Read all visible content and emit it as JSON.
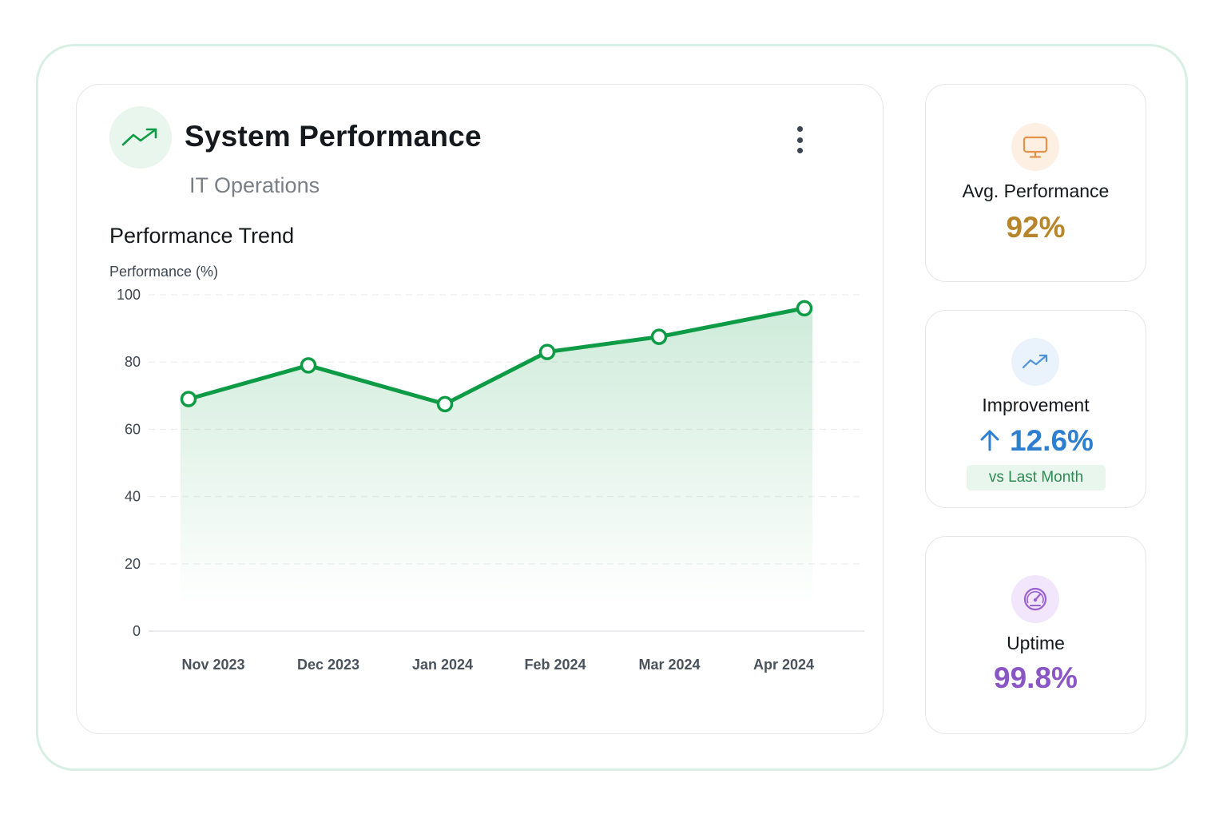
{
  "card": {
    "title": "System Performance",
    "subtitle": "IT Operations",
    "icon": "trending-up-icon",
    "menu_icon": "more-vertical-icon"
  },
  "chart_title": "Performance Trend",
  "chart_data": {
    "type": "area",
    "title": "Performance Trend",
    "ylabel": "Performance (%)",
    "xlabel": "",
    "categories": [
      "Nov 2023",
      "Dec 2023",
      "Jan 2024",
      "Feb 2024",
      "Mar 2024",
      "Apr 2024"
    ],
    "series": [
      {
        "values": [
          69,
          79,
          67.5,
          83,
          87.5,
          96
        ]
      }
    ],
    "ylim": [
      0,
      100
    ],
    "yticks": [
      "0",
      "20",
      "40",
      "60",
      "80",
      "100"
    ],
    "grid": true,
    "color": "#0d9b45"
  },
  "stats": [
    {
      "label": "Avg. Performance",
      "value": "92%",
      "icon": "monitor-icon",
      "color": "#b8862a",
      "icon_bg": "#fdf0e2",
      "icon_color": "#e3924a"
    },
    {
      "label": "Improvement",
      "value": "12.6%",
      "trend_icon": "arrow-up-icon",
      "icon": "trending-up-icon",
      "badge": "vs Last Month",
      "color": "#2f7fd0",
      "icon_bg": "#eaf3fc",
      "icon_color": "#4f93d6"
    },
    {
      "label": "Uptime",
      "value": "99.8%",
      "icon": "gauge-icon",
      "color": "#8a55c4",
      "icon_bg": "#f1e6fb",
      "icon_color": "#9a62cf"
    }
  ]
}
